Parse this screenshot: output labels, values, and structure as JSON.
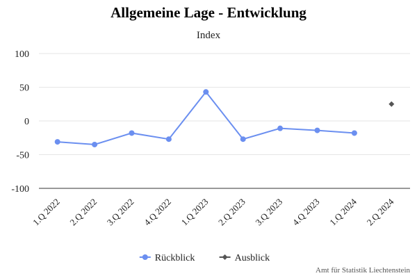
{
  "chart_data": {
    "type": "line",
    "title": "Allgemeine Lage - Entwicklung",
    "subtitle": "Index",
    "categories": [
      "1.Q 2022",
      "2.Q 2022",
      "3.Q 2022",
      "4.Q 2022",
      "1.Q 2023",
      "2.Q 2023",
      "3.Q 2023",
      "4.Q 2023",
      "1.Q 2024",
      "2.Q 2024"
    ],
    "series": [
      {
        "name": "Rückblick",
        "color": "#6b8ff0",
        "marker": "circle",
        "values": [
          -31,
          -35,
          -18,
          -27,
          43,
          -27,
          -11,
          -14,
          -18,
          null
        ]
      },
      {
        "name": "Ausblick",
        "color": "#555555",
        "marker": "diamond",
        "values": [
          null,
          null,
          null,
          null,
          null,
          null,
          null,
          null,
          null,
          25
        ]
      }
    ],
    "ylim": [
      -100,
      100
    ],
    "yticks": [
      100,
      50,
      0,
      -50,
      -100
    ],
    "grid": true,
    "legend": "bottom-center",
    "credit": "Amt für Statistik Liechtenstein"
  }
}
